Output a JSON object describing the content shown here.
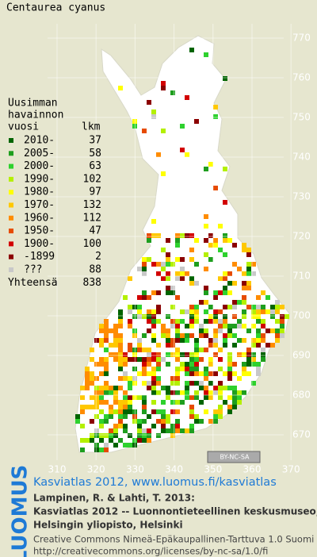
{
  "title": "Centaurea cyanus",
  "legend": {
    "heading": [
      "Uusimman",
      "havainnon",
      "vuosi"
    ],
    "count_heading": "lkm",
    "rows": [
      {
        "label": "2010-",
        "count": 37,
        "color": "#006400"
      },
      {
        "label": "2005-",
        "count": 58,
        "color": "#1e9e1e"
      },
      {
        "label": "2000-",
        "count": 63,
        "color": "#2ed12e"
      },
      {
        "label": "1990-",
        "count": 102,
        "color": "#b4f000"
      },
      {
        "label": "1980-",
        "count": 97,
        "color": "#ffff00"
      },
      {
        "label": "1970-",
        "count": 132,
        "color": "#ffc800"
      },
      {
        "label": "1960-",
        "count": 112,
        "color": "#ff8c00"
      },
      {
        "label": "1950-",
        "count": 47,
        "color": "#e64b00"
      },
      {
        "label": "1900-",
        "count": 100,
        "color": "#d20000"
      },
      {
        "label": "-1899",
        "count": 2,
        "color": "#8b0000"
      },
      {
        "label": "???",
        "count": 88,
        "color": "#c8c8c8"
      }
    ],
    "total_label": "Yhteensä",
    "total": 838
  },
  "grid": {
    "y_labels": [
      670,
      680,
      690,
      700,
      710,
      720,
      730,
      740,
      750,
      760,
      770
    ],
    "x_labels": [
      310,
      320,
      330,
      340,
      350,
      360,
      370
    ]
  },
  "license_badge": "BY-NC-SA",
  "footer": {
    "logo": "LUOMUS",
    "link": "Kasviatlas 2012, www.luomus.fi/kasviatlas",
    "citation": [
      "Lampinen, R. & Lahti, T. 2013:",
      "Kasviatlas 2012 -- Luonnontieteellinen keskusmuseo,",
      "Helsingin yliopisto, Helsinki"
    ],
    "license": [
      "Creative Commons Nimeä-Epäkaupallinen-Tarttuva 1.0 Suomi",
      "http://creativecommons.org/licenses/by-nc-sa/1.0/fi"
    ]
  }
}
